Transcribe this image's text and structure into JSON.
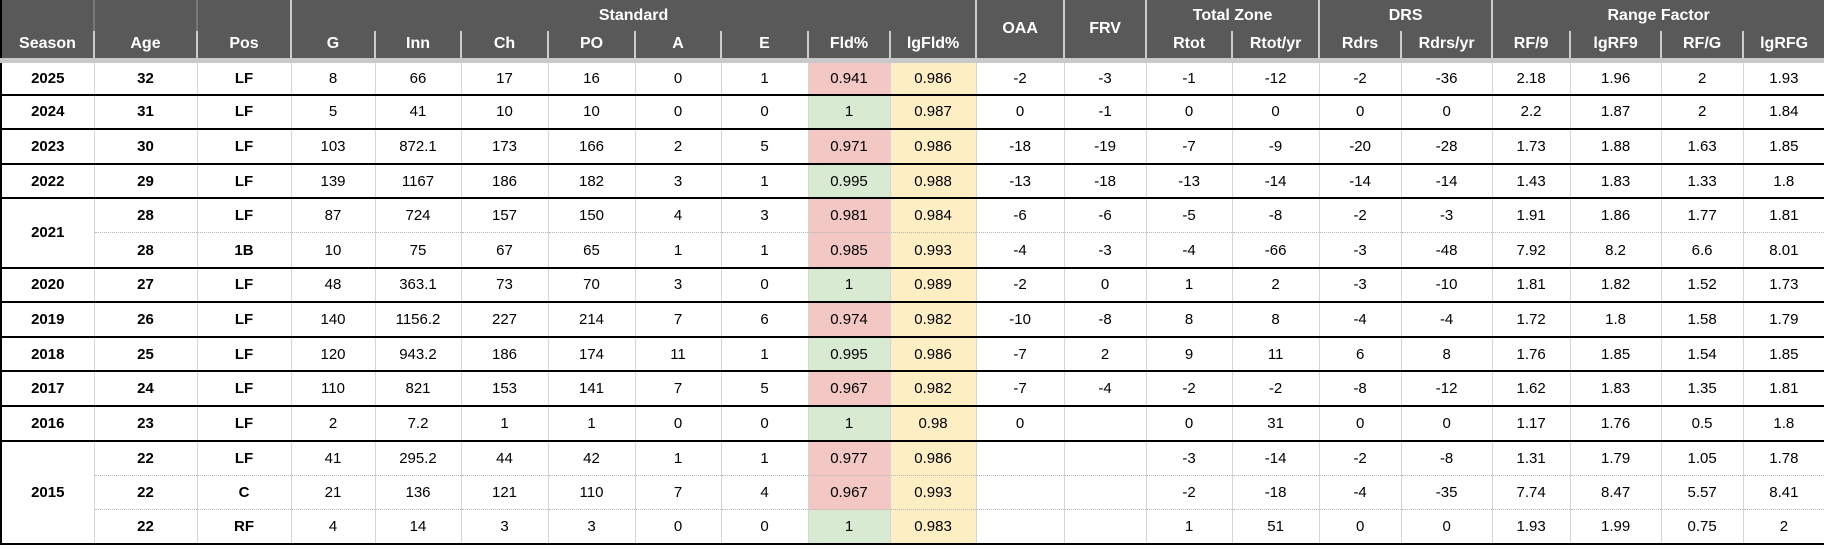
{
  "colors": {
    "header_bg": "#595959",
    "header_text": "#ffffff",
    "band": "#c9c9c9",
    "grid": "#d6d6d6",
    "dotted": "#b7b7b7",
    "season_line": "#000000",
    "fld_red": "#f3c8c4",
    "fld_green": "#d9ead3",
    "lgfld_yellow": "#fdeec4"
  },
  "table": {
    "groups": {
      "standard": "Standard",
      "oaa": "OAA",
      "frv": "FRV",
      "total_zone": "Total Zone",
      "drs": "DRS",
      "range_factor": "Range Factor"
    },
    "columns": {
      "season": "Season",
      "age": "Age",
      "pos": "Pos",
      "g": "G",
      "inn": "Inn",
      "ch": "Ch",
      "po": "PO",
      "a": "A",
      "e": "E",
      "fld": "Fld%",
      "lgfld": "lgFld%",
      "rtot": "Rtot",
      "rtotyr": "Rtot/yr",
      "rdrs": "Rdrs",
      "rdrsyr": "Rdrs/yr",
      "rf9": "RF/9",
      "lgrf9": "lgRF9",
      "rfg": "RF/G",
      "lgrfg": "lgRFG"
    },
    "column_keys": [
      "age",
      "pos",
      "g",
      "inn",
      "ch",
      "po",
      "a",
      "e",
      "fld",
      "lgfld",
      "oaa",
      "frv",
      "rtot",
      "rtotyr",
      "rdrs",
      "rdrsyr",
      "rf9",
      "lgrf9",
      "rfg",
      "lgrfg"
    ],
    "rows": [
      {
        "season": "2025",
        "rowspan": 1,
        "fld_color": "red",
        "values": [
          "32",
          "LF",
          "8",
          "66",
          "17",
          "16",
          "0",
          "1",
          "0.941",
          "0.986",
          "-2",
          "-3",
          "-1",
          "-12",
          "-2",
          "-36",
          "2.18",
          "1.96",
          "2",
          "1.93"
        ]
      },
      {
        "season": "2024",
        "rowspan": 1,
        "fld_color": "green",
        "values": [
          "31",
          "LF",
          "5",
          "41",
          "10",
          "10",
          "0",
          "0",
          "1",
          "0.987",
          "0",
          "-1",
          "0",
          "0",
          "0",
          "0",
          "2.2",
          "1.87",
          "2",
          "1.84"
        ]
      },
      {
        "season": "2023",
        "rowspan": 1,
        "fld_color": "red",
        "values": [
          "30",
          "LF",
          "103",
          "872.1",
          "173",
          "166",
          "2",
          "5",
          "0.971",
          "0.986",
          "-18",
          "-19",
          "-7",
          "-9",
          "-20",
          "-28",
          "1.73",
          "1.88",
          "1.63",
          "1.85"
        ]
      },
      {
        "season": "2022",
        "rowspan": 1,
        "fld_color": "green",
        "values": [
          "29",
          "LF",
          "139",
          "1167",
          "186",
          "182",
          "3",
          "1",
          "0.995",
          "0.988",
          "-13",
          "-18",
          "-13",
          "-14",
          "-14",
          "-14",
          "1.43",
          "1.83",
          "1.33",
          "1.8"
        ]
      },
      {
        "season": "2021",
        "rowspan": 2,
        "fld_color": "red",
        "values": [
          "28",
          "LF",
          "87",
          "724",
          "157",
          "150",
          "4",
          "3",
          "0.981",
          "0.984",
          "-6",
          "-6",
          "-5",
          "-8",
          "-2",
          "-3",
          "1.91",
          "1.86",
          "1.77",
          "1.81"
        ]
      },
      {
        "season": "",
        "rowspan": 1,
        "fld_color": "red",
        "values": [
          "28",
          "1B",
          "10",
          "75",
          "67",
          "65",
          "1",
          "1",
          "0.985",
          "0.993",
          "-4",
          "-3",
          "-4",
          "-66",
          "-3",
          "-48",
          "7.92",
          "8.2",
          "6.6",
          "8.01"
        ]
      },
      {
        "season": "2020",
        "rowspan": 1,
        "fld_color": "green",
        "values": [
          "27",
          "LF",
          "48",
          "363.1",
          "73",
          "70",
          "3",
          "0",
          "1",
          "0.989",
          "-2",
          "0",
          "1",
          "2",
          "-3",
          "-10",
          "1.81",
          "1.82",
          "1.52",
          "1.73"
        ]
      },
      {
        "season": "2019",
        "rowspan": 1,
        "fld_color": "red",
        "values": [
          "26",
          "LF",
          "140",
          "1156.2",
          "227",
          "214",
          "7",
          "6",
          "0.974",
          "0.982",
          "-10",
          "-8",
          "8",
          "8",
          "-4",
          "-4",
          "1.72",
          "1.8",
          "1.58",
          "1.79"
        ]
      },
      {
        "season": "2018",
        "rowspan": 1,
        "fld_color": "green",
        "values": [
          "25",
          "LF",
          "120",
          "943.2",
          "186",
          "174",
          "11",
          "1",
          "0.995",
          "0.986",
          "-7",
          "2",
          "9",
          "11",
          "6",
          "8",
          "1.76",
          "1.85",
          "1.54",
          "1.85"
        ]
      },
      {
        "season": "2017",
        "rowspan": 1,
        "fld_color": "red",
        "values": [
          "24",
          "LF",
          "110",
          "821",
          "153",
          "141",
          "7",
          "5",
          "0.967",
          "0.982",
          "-7",
          "-4",
          "-2",
          "-2",
          "-8",
          "-12",
          "1.62",
          "1.83",
          "1.35",
          "1.81"
        ]
      },
      {
        "season": "2016",
        "rowspan": 1,
        "fld_color": "green",
        "values": [
          "23",
          "LF",
          "2",
          "7.2",
          "1",
          "1",
          "0",
          "0",
          "1",
          "0.98",
          "0",
          "",
          "0",
          "31",
          "0",
          "0",
          "1.17",
          "1.76",
          "0.5",
          "1.8"
        ]
      },
      {
        "season": "2015",
        "rowspan": 3,
        "fld_color": "red",
        "values": [
          "22",
          "LF",
          "41",
          "295.2",
          "44",
          "42",
          "1",
          "1",
          "0.977",
          "0.986",
          "",
          "",
          "-3",
          "-14",
          "-2",
          "-8",
          "1.31",
          "1.79",
          "1.05",
          "1.78"
        ]
      },
      {
        "season": "",
        "rowspan": 1,
        "fld_color": "red",
        "values": [
          "22",
          "C",
          "21",
          "136",
          "121",
          "110",
          "7",
          "4",
          "0.967",
          "0.993",
          "",
          "",
          "-2",
          "-18",
          "-4",
          "-35",
          "7.74",
          "8.47",
          "5.57",
          "8.41"
        ]
      },
      {
        "season": "",
        "rowspan": 1,
        "fld_color": "green",
        "values": [
          "22",
          "RF",
          "4",
          "14",
          "3",
          "3",
          "0",
          "0",
          "1",
          "0.983",
          "",
          "",
          "1",
          "51",
          "0",
          "0",
          "1.93",
          "1.99",
          "0.75",
          "2"
        ]
      }
    ]
  }
}
